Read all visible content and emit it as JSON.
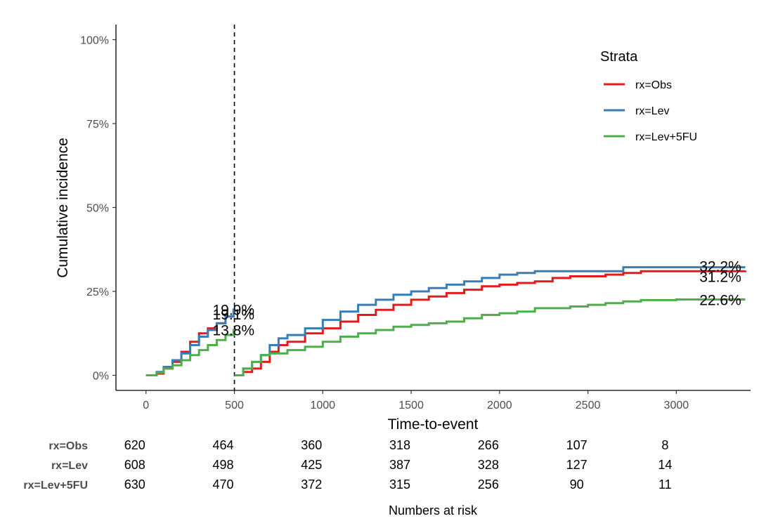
{
  "chart_data": {
    "type": "line",
    "subtype": "cumulative-incidence-step",
    "ylabel": "Cumulative incidence",
    "xlabel": "Time-to-event",
    "xlim": [
      -170,
      3420
    ],
    "ylim": [
      -0.045,
      1.045
    ],
    "x_ticks": [
      0,
      500,
      1000,
      1500,
      2000,
      2500,
      3000
    ],
    "x_tick_labels": [
      "0",
      "500",
      "1000",
      "1500",
      "2000",
      "2500",
      "3000"
    ],
    "y_ticks": [
      0,
      0.25,
      0.5,
      0.75,
      1.0
    ],
    "y_tick_labels": [
      "0%",
      "25%",
      "50%",
      "75%",
      "100%"
    ],
    "grid": false,
    "landmark_time": 500,
    "legend": {
      "title": "Strata",
      "position": "top-right",
      "entries": [
        "rx=Obs",
        "rx=Lev",
        "rx=Lev+5FU"
      ]
    },
    "series": [
      {
        "name": "rx=Obs",
        "color": "#e41a1c",
        "segment1": [
          [
            0,
            0
          ],
          [
            60,
            0.005
          ],
          [
            100,
            0.02
          ],
          [
            150,
            0.04
          ],
          [
            200,
            0.07
          ],
          [
            250,
            0.1
          ],
          [
            300,
            0.125
          ],
          [
            350,
            0.14
          ],
          [
            400,
            0.155
          ],
          [
            450,
            0.175
          ],
          [
            495,
            0.191
          ]
        ],
        "segment2": [
          [
            500,
            0
          ],
          [
            550,
            0.01
          ],
          [
            600,
            0.02
          ],
          [
            650,
            0.04
          ],
          [
            700,
            0.07
          ],
          [
            750,
            0.09
          ],
          [
            800,
            0.1
          ],
          [
            900,
            0.125
          ],
          [
            1000,
            0.14
          ],
          [
            1100,
            0.16
          ],
          [
            1200,
            0.18
          ],
          [
            1300,
            0.195
          ],
          [
            1400,
            0.21
          ],
          [
            1500,
            0.225
          ],
          [
            1600,
            0.235
          ],
          [
            1700,
            0.245
          ],
          [
            1800,
            0.255
          ],
          [
            1900,
            0.265
          ],
          [
            2000,
            0.27
          ],
          [
            2100,
            0.275
          ],
          [
            2200,
            0.28
          ],
          [
            2300,
            0.29
          ],
          [
            2400,
            0.295
          ],
          [
            2600,
            0.3
          ],
          [
            2700,
            0.305
          ],
          [
            2800,
            0.31
          ],
          [
            3000,
            0.31
          ],
          [
            3200,
            0.31
          ],
          [
            3390,
            0.312
          ]
        ],
        "landmark_label": "19.1%",
        "end_label": "31.2%"
      },
      {
        "name": "rx=Lev",
        "color": "#377eb8",
        "segment1": [
          [
            0,
            0
          ],
          [
            60,
            0.01
          ],
          [
            100,
            0.025
          ],
          [
            150,
            0.045
          ],
          [
            200,
            0.065
          ],
          [
            250,
            0.09
          ],
          [
            300,
            0.115
          ],
          [
            350,
            0.135
          ],
          [
            400,
            0.155
          ],
          [
            450,
            0.175
          ],
          [
            495,
            0.199
          ]
        ],
        "segment2": [
          [
            500,
            0
          ],
          [
            550,
            0.02
          ],
          [
            600,
            0.04
          ],
          [
            650,
            0.06
          ],
          [
            700,
            0.09
          ],
          [
            750,
            0.11
          ],
          [
            800,
            0.12
          ],
          [
            900,
            0.14
          ],
          [
            1000,
            0.165
          ],
          [
            1100,
            0.19
          ],
          [
            1200,
            0.21
          ],
          [
            1300,
            0.225
          ],
          [
            1400,
            0.24
          ],
          [
            1500,
            0.25
          ],
          [
            1600,
            0.26
          ],
          [
            1700,
            0.27
          ],
          [
            1800,
            0.28
          ],
          [
            1900,
            0.29
          ],
          [
            2000,
            0.3
          ],
          [
            2100,
            0.305
          ],
          [
            2200,
            0.31
          ],
          [
            2400,
            0.31
          ],
          [
            2600,
            0.31
          ],
          [
            2700,
            0.322
          ],
          [
            3000,
            0.322
          ],
          [
            3390,
            0.322
          ]
        ],
        "landmark_label": "19.9%",
        "end_label": "32.2%"
      },
      {
        "name": "rx=Lev+5FU",
        "color": "#4daf4a",
        "segment1": [
          [
            0,
            0
          ],
          [
            60,
            0.008
          ],
          [
            100,
            0.02
          ],
          [
            150,
            0.03
          ],
          [
            200,
            0.045
          ],
          [
            250,
            0.06
          ],
          [
            300,
            0.075
          ],
          [
            350,
            0.09
          ],
          [
            400,
            0.105
          ],
          [
            450,
            0.12
          ],
          [
            495,
            0.138
          ]
        ],
        "segment2": [
          [
            500,
            0
          ],
          [
            550,
            0.02
          ],
          [
            600,
            0.04
          ],
          [
            650,
            0.06
          ],
          [
            700,
            0.065
          ],
          [
            800,
            0.075
          ],
          [
            900,
            0.085
          ],
          [
            1000,
            0.1
          ],
          [
            1100,
            0.115
          ],
          [
            1200,
            0.125
          ],
          [
            1300,
            0.135
          ],
          [
            1400,
            0.145
          ],
          [
            1500,
            0.15
          ],
          [
            1600,
            0.155
          ],
          [
            1700,
            0.16
          ],
          [
            1800,
            0.17
          ],
          [
            1900,
            0.18
          ],
          [
            2000,
            0.185
          ],
          [
            2100,
            0.19
          ],
          [
            2200,
            0.2
          ],
          [
            2400,
            0.205
          ],
          [
            2500,
            0.21
          ],
          [
            2600,
            0.215
          ],
          [
            2700,
            0.22
          ],
          [
            2800,
            0.224
          ],
          [
            3000,
            0.226
          ],
          [
            3390,
            0.226
          ]
        ],
        "landmark_label": "13.8%",
        "end_label": "22.6%"
      }
    ],
    "risk_table": {
      "title": "Numbers at risk",
      "times": [
        0,
        500,
        1000,
        1500,
        2000,
        2500,
        3000
      ],
      "rows": [
        {
          "label": "rx=Obs",
          "values": [
            "620",
            "464",
            "360",
            "318",
            "266",
            "107",
            "8"
          ]
        },
        {
          "label": "rx=Lev",
          "values": [
            "608",
            "498",
            "425",
            "387",
            "328",
            "127",
            "14"
          ]
        },
        {
          "label": "rx=Lev+5FU",
          "values": [
            "630",
            "470",
            "372",
            "315",
            "256",
            "90",
            "11"
          ]
        }
      ]
    }
  }
}
